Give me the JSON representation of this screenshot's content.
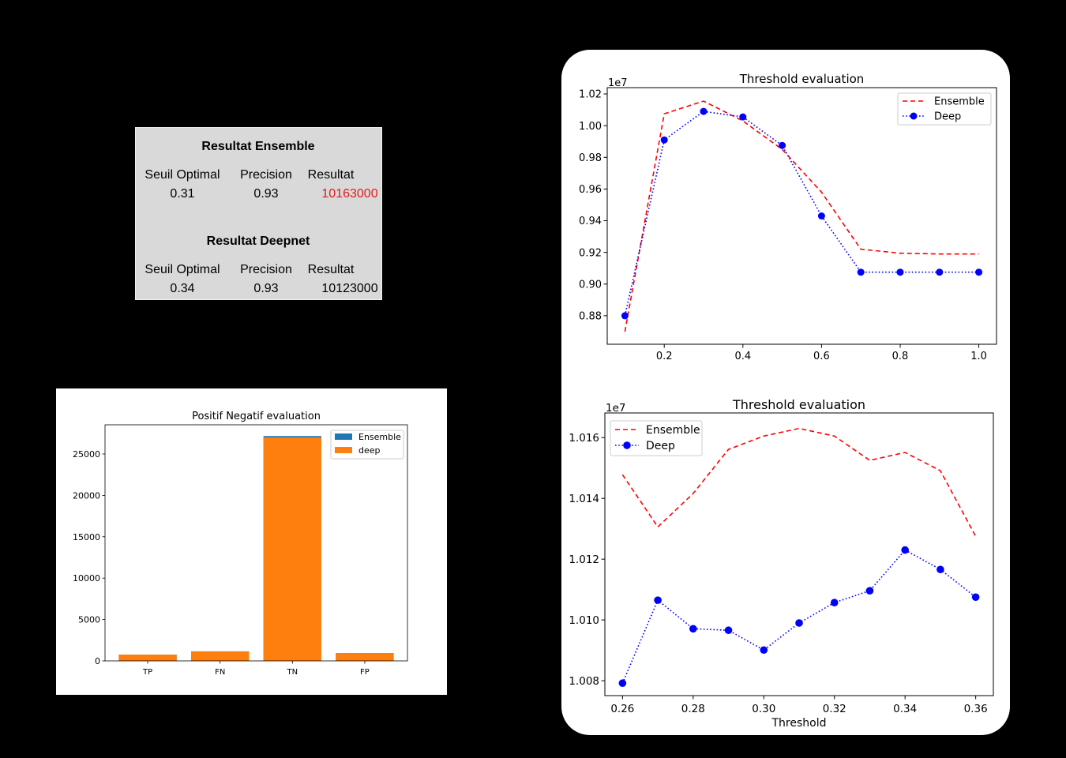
{
  "chart_data": [
    {
      "type": "table",
      "sections": [
        {
          "title": "Resultat Ensemble",
          "headers": [
            "Seuil Optimal",
            "Precision",
            "Resultat"
          ],
          "values": [
            "0.31",
            "0.93",
            "10163000"
          ],
          "result_color": "#e31a1c"
        },
        {
          "title": "Resultat Deepnet",
          "headers": [
            "Seuil Optimal",
            "Precision",
            "Resultat"
          ],
          "values": [
            "0.34",
            "0.93",
            "10123000"
          ]
        }
      ]
    },
    {
      "type": "bar",
      "title": "Positif Negatif evaluation",
      "categories": [
        "TP",
        "FN",
        "TN",
        "FP"
      ],
      "series": [
        {
          "name": "Ensemble",
          "color": "#1f77b4",
          "values": [
            760,
            1150,
            27170,
            950
          ]
        },
        {
          "name": "deep",
          "color": "#ff7f0e",
          "values": [
            760,
            1150,
            27000,
            950
          ]
        }
      ],
      "yticks": [
        "0",
        "5000",
        "10000",
        "15000",
        "20000",
        "25000"
      ],
      "ylim": [
        0,
        28530
      ],
      "legend": "top-right",
      "grid": false
    },
    {
      "type": "line",
      "title": "Threshold evaluation",
      "y_multiplier": "1e7",
      "x": [
        0.1,
        0.2,
        0.3,
        0.4,
        0.5,
        0.6,
        0.7,
        0.8,
        0.9,
        1.0
      ],
      "series": [
        {
          "name": "Ensemble",
          "color": "#ff0000",
          "linestyle": "dashed",
          "marker": "none",
          "values": [
            0.87,
            1.0075,
            1.0155,
            1.003,
            0.985,
            0.958,
            0.922,
            0.9195,
            0.919,
            0.919
          ]
        },
        {
          "name": "Deep",
          "color": "#0000ff",
          "linestyle": "dotted",
          "marker": "circle",
          "values": [
            0.88,
            0.991,
            1.009,
            1.0055,
            0.9875,
            0.943,
            0.9075,
            0.9075,
            0.9075,
            0.9075
          ]
        }
      ],
      "xticks": [
        "0.2",
        "0.4",
        "0.6",
        "0.8",
        "1.0"
      ],
      "yticks": [
        "0.88",
        "0.90",
        "0.92",
        "0.94",
        "0.96",
        "0.98",
        "1.00",
        "1.02"
      ],
      "xlim": [
        0.055,
        1.045
      ],
      "ylim": [
        0.862,
        1.024
      ],
      "legend": "top-right",
      "grid": false
    },
    {
      "type": "line",
      "title": "Threshold evaluation",
      "xlabel": "Threshold",
      "y_multiplier": "1e7",
      "x": [
        0.26,
        0.27,
        0.28,
        0.29,
        0.3,
        0.31,
        0.32,
        0.33,
        0.34,
        0.35,
        0.36
      ],
      "series": [
        {
          "name": "Ensemble",
          "color": "#ff0000",
          "linestyle": "dashed",
          "marker": "none",
          "values": [
            1.01478,
            1.01306,
            1.01416,
            1.01561,
            1.01605,
            1.0163,
            1.01605,
            1.01525,
            1.01551,
            1.01491,
            1.01275
          ]
        },
        {
          "name": "Deep",
          "color": "#0000ff",
          "linestyle": "dotted",
          "marker": "circle",
          "values": [
            1.00792,
            1.01065,
            1.00971,
            1.00966,
            1.00901,
            1.0099,
            1.01057,
            1.01096,
            1.0123,
            1.01166,
            1.01075
          ]
        }
      ],
      "xticks": [
        "0.26",
        "0.28",
        "0.30",
        "0.32",
        "0.34",
        "0.36"
      ],
      "yticks": [
        "1.008",
        "1.010",
        "1.012",
        "1.014",
        "1.016"
      ],
      "xlim": [
        0.255,
        0.365
      ],
      "ylim": [
        1.00751,
        1.01681
      ],
      "legend": "top-left",
      "grid": false
    }
  ]
}
